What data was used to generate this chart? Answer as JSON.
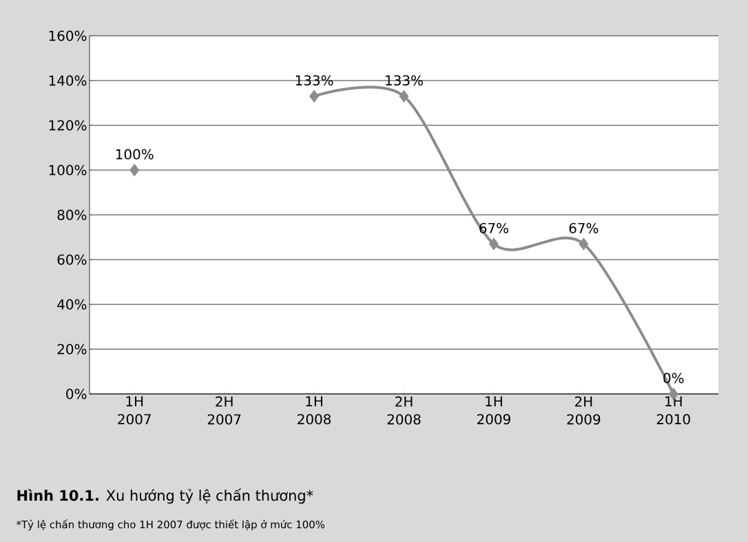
{
  "chart_data": {
    "type": "line",
    "title": "**Hình 10.1.** Xu hướng tỷ lệ chấn thương*",
    "annotations": [
      "*Tỷ lệ chấn thương cho 1H 2007 được thiết lập ở mức 100%"
    ],
    "categories": [
      "1H 2007",
      "2H 2007",
      "1H 2008",
      "2H 2008",
      "1H 2009",
      "2H 2009",
      "1H 2010"
    ],
    "values": [
      100,
      null,
      133,
      133,
      67,
      67,
      0
    ],
    "value_labels": [
      "100%",
      null,
      "133%",
      "133%",
      "67%",
      "67%",
      "0%"
    ],
    "color": "#8c8c8c",
    "marker": "diamond",
    "line_style": "solid",
    "grid": "y",
    "ylim": [
      0,
      160
    ],
    "yticks": [
      {
        "value": 0,
        "label": "0%"
      },
      {
        "value": 20,
        "label": "20%"
      },
      {
        "value": 40,
        "label": "40%"
      },
      {
        "value": 60,
        "label": "60%"
      },
      {
        "value": 80,
        "label": "80%"
      },
      {
        "value": 100,
        "label": "100%"
      },
      {
        "value": 120,
        "label": "120%"
      },
      {
        "value": 140,
        "label": "140%"
      },
      {
        "value": 160,
        "label": "160%"
      }
    ]
  }
}
